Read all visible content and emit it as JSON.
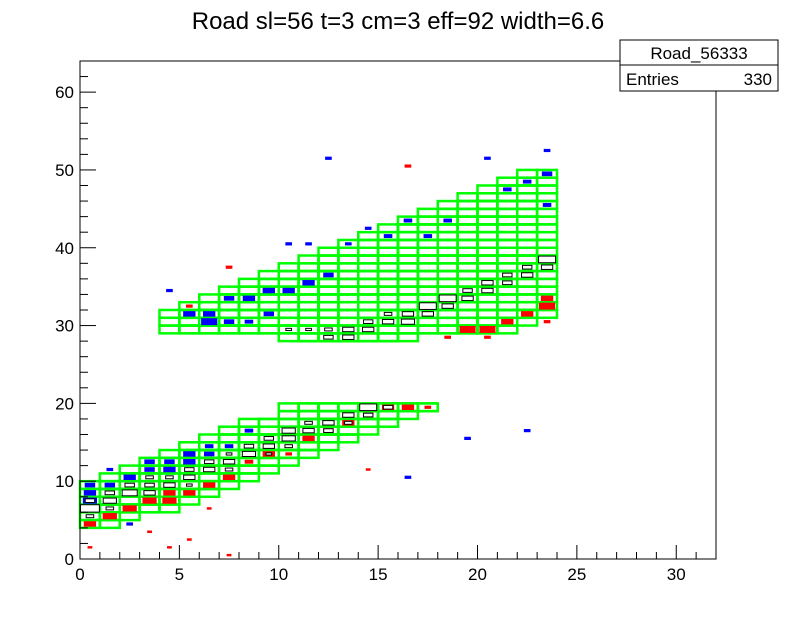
{
  "chart_data": {
    "type": "heatmap",
    "title": "Road sl=56 t=3 cm=3 eff=92 width=6.6",
    "xlabel": "",
    "ylabel": "",
    "xlim": [
      0,
      32
    ],
    "ylim": [
      0,
      64
    ],
    "x_ticks": [
      "0",
      "5",
      "10",
      "15",
      "20",
      "25",
      "30"
    ],
    "y_ticks": [
      "0",
      "10",
      "20",
      "30",
      "40",
      "50",
      "60"
    ],
    "grid": false,
    "stats_box": {
      "name": "Road_56333",
      "entries_label": "Entries",
      "entries_value": "330"
    },
    "colors": {
      "road": "#00ff00",
      "blue_hits": "#0000ff",
      "red_hits": "#ff0000",
      "hit_box": "#000000"
    },
    "road_rectangles": [
      {
        "x": 0,
        "w": 2,
        "y0": 4,
        "y1": 10
      },
      {
        "x": 1,
        "w": 2,
        "y0": 5,
        "y1": 11
      },
      {
        "x": 2,
        "w": 2,
        "y0": 6,
        "y1": 12
      },
      {
        "x": 3,
        "w": 2,
        "y0": 6,
        "y1": 13
      },
      {
        "x": 4,
        "w": 2,
        "y0": 7,
        "y1": 14
      },
      {
        "x": 5,
        "w": 2,
        "y0": 8,
        "y1": 15
      },
      {
        "x": 6,
        "w": 2,
        "y0": 9,
        "y1": 16
      },
      {
        "x": 7,
        "w": 2,
        "y0": 10,
        "y1": 17
      },
      {
        "x": 8,
        "w": 2,
        "y0": 11,
        "y1": 18
      },
      {
        "x": 9,
        "w": 2,
        "y0": 12,
        "y1": 18
      },
      {
        "x": 10,
        "w": 2,
        "y0": 13,
        "y1": 20
      },
      {
        "x": 11,
        "w": 2,
        "y0": 14,
        "y1": 20
      },
      {
        "x": 12,
        "w": 2,
        "y0": 15,
        "y1": 20
      },
      {
        "x": 13,
        "w": 2,
        "y0": 16,
        "y1": 20
      },
      {
        "x": 14,
        "w": 2,
        "y0": 17,
        "y1": 20
      },
      {
        "x": 15,
        "w": 2,
        "y0": 18,
        "y1": 20
      },
      {
        "x": 16,
        "w": 2,
        "y0": 19,
        "y1": 20
      },
      {
        "x": 17,
        "w": 1,
        "y0": 19,
        "y1": 20
      },
      {
        "x": 4,
        "w": 2,
        "y0": 29,
        "y1": 32
      },
      {
        "x": 5,
        "w": 2,
        "y0": 29,
        "y1": 33
      },
      {
        "x": 6,
        "w": 2,
        "y0": 29,
        "y1": 34
      },
      {
        "x": 7,
        "w": 2,
        "y0": 29,
        "y1": 35
      },
      {
        "x": 8,
        "w": 2,
        "y0": 29,
        "y1": 36
      },
      {
        "x": 9,
        "w": 2,
        "y0": 29,
        "y1": 37
      },
      {
        "x": 10,
        "w": 2,
        "y0": 28,
        "y1": 38
      },
      {
        "x": 11,
        "w": 2,
        "y0": 28,
        "y1": 39
      },
      {
        "x": 12,
        "w": 2,
        "y0": 28,
        "y1": 40
      },
      {
        "x": 13,
        "w": 2,
        "y0": 28,
        "y1": 41
      },
      {
        "x": 14,
        "w": 2,
        "y0": 28,
        "y1": 42
      },
      {
        "x": 15,
        "w": 2,
        "y0": 28,
        "y1": 43
      },
      {
        "x": 16,
        "w": 2,
        "y0": 29,
        "y1": 44
      },
      {
        "x": 17,
        "w": 2,
        "y0": 29,
        "y1": 45
      },
      {
        "x": 18,
        "w": 2,
        "y0": 29,
        "y1": 46
      },
      {
        "x": 19,
        "w": 2,
        "y0": 29,
        "y1": 47
      },
      {
        "x": 20,
        "w": 2,
        "y0": 29,
        "y1": 48
      },
      {
        "x": 21,
        "w": 2,
        "y0": 30,
        "y1": 49
      },
      {
        "x": 22,
        "w": 2,
        "y0": 31,
        "y1": 50
      }
    ],
    "black_hits": [
      {
        "x": 0.5,
        "y": 6.5,
        "s": 1.0
      },
      {
        "x": 0.5,
        "y": 7.5,
        "s": 0.5
      },
      {
        "x": 0.5,
        "y": 5.5,
        "s": 0.4
      },
      {
        "x": 1.5,
        "y": 7.5,
        "s": 0.7
      },
      {
        "x": 1.5,
        "y": 8.5,
        "s": 0.5
      },
      {
        "x": 1.5,
        "y": 6.5,
        "s": 0.4
      },
      {
        "x": 2.5,
        "y": 8.5,
        "s": 0.8
      },
      {
        "x": 2.5,
        "y": 9.5,
        "s": 0.5
      },
      {
        "x": 3.5,
        "y": 8.5,
        "s": 0.6
      },
      {
        "x": 3.5,
        "y": 9.5,
        "s": 0.5
      },
      {
        "x": 3.5,
        "y": 10.5,
        "s": 0.4
      },
      {
        "x": 4.5,
        "y": 9.5,
        "s": 0.6
      },
      {
        "x": 4.5,
        "y": 10.5,
        "s": 0.4
      },
      {
        "x": 5.5,
        "y": 10.5,
        "s": 0.6
      },
      {
        "x": 5.5,
        "y": 11.5,
        "s": 0.5
      },
      {
        "x": 5.5,
        "y": 9.5,
        "s": 0.3
      },
      {
        "x": 6.5,
        "y": 11.5,
        "s": 0.6
      },
      {
        "x": 6.5,
        "y": 12.5,
        "s": 0.5
      },
      {
        "x": 7.5,
        "y": 12.5,
        "s": 0.6
      },
      {
        "x": 7.5,
        "y": 11.5,
        "s": 0.4
      },
      {
        "x": 7.5,
        "y": 13.5,
        "s": 0.3
      },
      {
        "x": 8.5,
        "y": 13.5,
        "s": 0.7
      },
      {
        "x": 8.5,
        "y": 14.5,
        "s": 0.5
      },
      {
        "x": 9.5,
        "y": 14.5,
        "s": 0.6
      },
      {
        "x": 9.5,
        "y": 15.5,
        "s": 0.5
      },
      {
        "x": 9.5,
        "y": 13.5,
        "s": 0.3
      },
      {
        "x": 10.5,
        "y": 15.5,
        "s": 0.7
      },
      {
        "x": 10.5,
        "y": 16.5,
        "s": 0.7
      },
      {
        "x": 10.5,
        "y": 14.5,
        "s": 0.4
      },
      {
        "x": 11.5,
        "y": 16.5,
        "s": 0.6
      },
      {
        "x": 11.5,
        "y": 17.5,
        "s": 0.4
      },
      {
        "x": 12.5,
        "y": 17.5,
        "s": 0.6
      },
      {
        "x": 12.5,
        "y": 16.5,
        "s": 0.5
      },
      {
        "x": 13.5,
        "y": 18.5,
        "s": 0.6
      },
      {
        "x": 13.5,
        "y": 17.5,
        "s": 0.4
      },
      {
        "x": 14.5,
        "y": 19.5,
        "s": 0.9
      },
      {
        "x": 14.5,
        "y": 18.5,
        "s": 0.5
      },
      {
        "x": 15.5,
        "y": 19.5,
        "s": 0.5
      },
      {
        "x": 16.5,
        "y": 30.5,
        "s": 0.7
      },
      {
        "x": 16.5,
        "y": 31.5,
        "s": 0.6
      },
      {
        "x": 10.5,
        "y": 29.5,
        "s": 0.3
      },
      {
        "x": 11.5,
        "y": 29.5,
        "s": 0.3
      },
      {
        "x": 12.5,
        "y": 28.5,
        "s": 0.5
      },
      {
        "x": 12.5,
        "y": 29.5,
        "s": 0.4
      },
      {
        "x": 13.5,
        "y": 28.5,
        "s": 0.6
      },
      {
        "x": 13.5,
        "y": 29.5,
        "s": 0.6
      },
      {
        "x": 14.5,
        "y": 29.5,
        "s": 0.6
      },
      {
        "x": 14.5,
        "y": 30.5,
        "s": 0.5
      },
      {
        "x": 15.5,
        "y": 30.5,
        "s": 0.6
      },
      {
        "x": 15.5,
        "y": 31.5,
        "s": 0.4
      },
      {
        "x": 17.5,
        "y": 32.5,
        "s": 0.9
      },
      {
        "x": 17.5,
        "y": 31.5,
        "s": 0.6
      },
      {
        "x": 18.5,
        "y": 33.5,
        "s": 0.9
      },
      {
        "x": 18.5,
        "y": 32.5,
        "s": 0.6
      },
      {
        "x": 19.5,
        "y": 33.5,
        "s": 0.6
      },
      {
        "x": 19.5,
        "y": 34.5,
        "s": 0.5
      },
      {
        "x": 20.5,
        "y": 34.5,
        "s": 0.6
      },
      {
        "x": 20.5,
        "y": 35.5,
        "s": 0.6
      },
      {
        "x": 21.5,
        "y": 35.5,
        "s": 0.5
      },
      {
        "x": 21.5,
        "y": 36.5,
        "s": 0.5
      },
      {
        "x": 22.5,
        "y": 36.5,
        "s": 0.6
      },
      {
        "x": 22.5,
        "y": 37.5,
        "s": 0.5
      },
      {
        "x": 23.5,
        "y": 38.5,
        "s": 0.9
      },
      {
        "x": 23.5,
        "y": 37.5,
        "s": 0.6
      }
    ],
    "red_hits": [
      {
        "x": 0.5,
        "y": 4.5,
        "s": 0.6
      },
      {
        "x": 0.5,
        "y": 1.5,
        "s": 0.2
      },
      {
        "x": 1.5,
        "y": 5.5,
        "s": 0.7
      },
      {
        "x": 2.5,
        "y": 6.5,
        "s": 0.7
      },
      {
        "x": 3.5,
        "y": 7.5,
        "s": 0.7
      },
      {
        "x": 3.5,
        "y": 3.5,
        "s": 0.2
      },
      {
        "x": 4.5,
        "y": 7.5,
        "s": 0.7
      },
      {
        "x": 4.5,
        "y": 8.5,
        "s": 0.6
      },
      {
        "x": 4.5,
        "y": 1.5,
        "s": 0.2
      },
      {
        "x": 5.5,
        "y": 8.5,
        "s": 0.6
      },
      {
        "x": 5.5,
        "y": 2.5,
        "s": 0.2
      },
      {
        "x": 6.5,
        "y": 9.5,
        "s": 0.6
      },
      {
        "x": 6.5,
        "y": 6.5,
        "s": 0.2
      },
      {
        "x": 7.5,
        "y": 10.5,
        "s": 0.6
      },
      {
        "x": 7.5,
        "y": 0.5,
        "s": 0.2
      },
      {
        "x": 8.5,
        "y": 12.5,
        "s": 0.4
      },
      {
        "x": 9.5,
        "y": 13.5,
        "s": 0.6
      },
      {
        "x": 10.5,
        "y": 13.5,
        "s": 0.3
      },
      {
        "x": 11.5,
        "y": 15.5,
        "s": 0.6
      },
      {
        "x": 12.5,
        "y": 16.5,
        "s": 0.5
      },
      {
        "x": 13.5,
        "y": 17.5,
        "s": 0.6
      },
      {
        "x": 14.5,
        "y": 18.5,
        "s": 0.5
      },
      {
        "x": 14.5,
        "y": 11.5,
        "s": 0.2
      },
      {
        "x": 15.5,
        "y": 19.5,
        "s": 0.6
      },
      {
        "x": 16.5,
        "y": 19.5,
        "s": 0.6
      },
      {
        "x": 17.5,
        "y": 19.5,
        "s": 0.3
      },
      {
        "x": 18.5,
        "y": 28.5,
        "s": 0.3
      },
      {
        "x": 19.5,
        "y": 29.5,
        "s": 0.8
      },
      {
        "x": 20.5,
        "y": 29.5,
        "s": 0.8
      },
      {
        "x": 21.5,
        "y": 30.5,
        "s": 0.6
      },
      {
        "x": 22.5,
        "y": 31.5,
        "s": 0.6
      },
      {
        "x": 23.5,
        "y": 32.5,
        "s": 0.8
      },
      {
        "x": 23.5,
        "y": 33.5,
        "s": 0.6
      },
      {
        "x": 23.5,
        "y": 30.5,
        "s": 0.3
      },
      {
        "x": 20.5,
        "y": 28.5,
        "s": 0.3
      },
      {
        "x": 16.5,
        "y": 50.5,
        "s": 0.3
      },
      {
        "x": 5.5,
        "y": 32.5,
        "s": 0.3
      },
      {
        "x": 7.5,
        "y": 37.5,
        "s": 0.3
      }
    ],
    "blue_hits": [
      {
        "x": 0.5,
        "y": 9.5,
        "s": 0.5
      },
      {
        "x": 0.5,
        "y": 8.5,
        "s": 0.6
      },
      {
        "x": 0.5,
        "y": 7.5,
        "s": 0.7
      },
      {
        "x": 1.5,
        "y": 9.5,
        "s": 0.5
      },
      {
        "x": 1.5,
        "y": 11.5,
        "s": 0.3
      },
      {
        "x": 2.5,
        "y": 10.5,
        "s": 0.6
      },
      {
        "x": 2.5,
        "y": 4.5,
        "s": 0.3
      },
      {
        "x": 3.5,
        "y": 11.5,
        "s": 0.5
      },
      {
        "x": 3.5,
        "y": 12.5,
        "s": 0.5
      },
      {
        "x": 4.5,
        "y": 11.5,
        "s": 0.6
      },
      {
        "x": 4.5,
        "y": 12.5,
        "s": 0.5
      },
      {
        "x": 5.5,
        "y": 12.5,
        "s": 0.6
      },
      {
        "x": 5.5,
        "y": 13.5,
        "s": 0.6
      },
      {
        "x": 6.5,
        "y": 13.5,
        "s": 0.5
      },
      {
        "x": 6.5,
        "y": 14.5,
        "s": 0.4
      },
      {
        "x": 7.5,
        "y": 14.5,
        "s": 0.4
      },
      {
        "x": 8.5,
        "y": 16.5,
        "s": 0.4
      },
      {
        "x": 4.5,
        "y": 34.5,
        "s": 0.3
      },
      {
        "x": 5.5,
        "y": 31.5,
        "s": 0.6
      },
      {
        "x": 6.5,
        "y": 30.5,
        "s": 0.8
      },
      {
        "x": 6.5,
        "y": 31.5,
        "s": 0.6
      },
      {
        "x": 7.5,
        "y": 30.5,
        "s": 0.5
      },
      {
        "x": 7.5,
        "y": 33.5,
        "s": 0.5
      },
      {
        "x": 8.5,
        "y": 30.5,
        "s": 0.4
      },
      {
        "x": 8.5,
        "y": 33.5,
        "s": 0.6
      },
      {
        "x": 9.5,
        "y": 31.5,
        "s": 0.5
      },
      {
        "x": 9.5,
        "y": 34.5,
        "s": 0.6
      },
      {
        "x": 10.5,
        "y": 34.5,
        "s": 0.6
      },
      {
        "x": 10.5,
        "y": 40.5,
        "s": 0.3
      },
      {
        "x": 11.5,
        "y": 35.5,
        "s": 0.6
      },
      {
        "x": 11.5,
        "y": 40.5,
        "s": 0.3
      },
      {
        "x": 12.5,
        "y": 36.5,
        "s": 0.5
      },
      {
        "x": 12.5,
        "y": 51.5,
        "s": 0.3
      },
      {
        "x": 13.5,
        "y": 40.5,
        "s": 0.3
      },
      {
        "x": 14.5,
        "y": 42.5,
        "s": 0.3
      },
      {
        "x": 15.5,
        "y": 41.5,
        "s": 0.4
      },
      {
        "x": 16.5,
        "y": 43.5,
        "s": 0.4
      },
      {
        "x": 17.5,
        "y": 41.5,
        "s": 0.4
      },
      {
        "x": 18.5,
        "y": 43.5,
        "s": 0.4
      },
      {
        "x": 19.5,
        "y": 15.5,
        "s": 0.3
      },
      {
        "x": 20.5,
        "y": 51.5,
        "s": 0.3
      },
      {
        "x": 21.5,
        "y": 47.5,
        "s": 0.4
      },
      {
        "x": 22.5,
        "y": 48.5,
        "s": 0.4
      },
      {
        "x": 22.5,
        "y": 16.5,
        "s": 0.3
      },
      {
        "x": 23.5,
        "y": 52.5,
        "s": 0.3
      },
      {
        "x": 23.5,
        "y": 49.5,
        "s": 0.5
      },
      {
        "x": 23.5,
        "y": 45.5,
        "s": 0.4
      },
      {
        "x": 16.5,
        "y": 10.5,
        "s": 0.3
      }
    ]
  }
}
